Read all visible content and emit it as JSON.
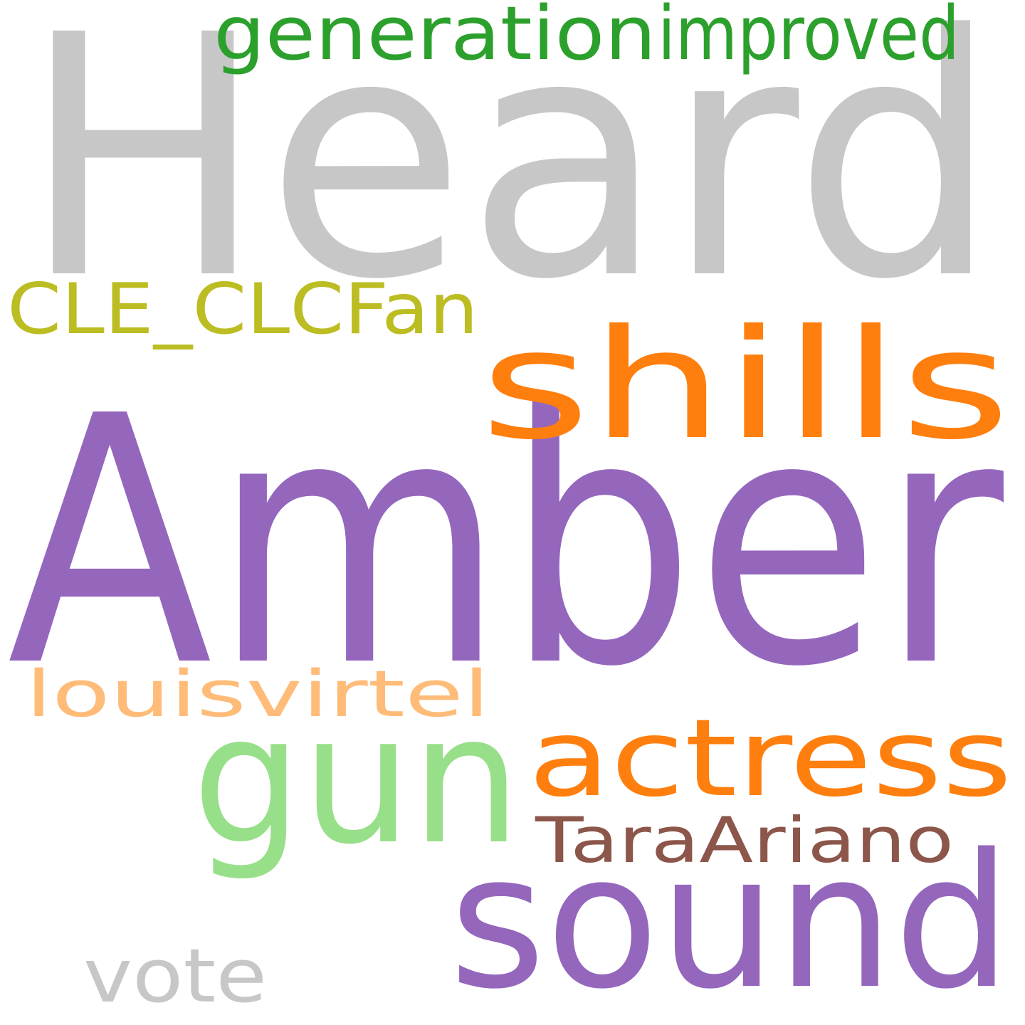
{
  "words": [
    {
      "text": "Heard",
      "color": "#c7c7c7"
    },
    {
      "text": "Amber",
      "color": "#9467bd"
    },
    {
      "text": "shills",
      "color": "#ff7f0e"
    },
    {
      "text": "gun",
      "color": "#98df8a"
    },
    {
      "text": "actress",
      "color": "#ff7f0e"
    },
    {
      "text": "sound",
      "color": "#9467bd"
    },
    {
      "text": "generation",
      "color": "#2ca02c"
    },
    {
      "text": "improved",
      "color": "#2ca02c"
    },
    {
      "text": "CLE_CLCFan",
      "color": "#bcbd22"
    },
    {
      "text": "louisvirtel",
      "color": "#ffbb78"
    },
    {
      "text": "TaraAriano",
      "color": "#8c564b"
    },
    {
      "text": "vote",
      "color": "#c7c7c7"
    }
  ]
}
